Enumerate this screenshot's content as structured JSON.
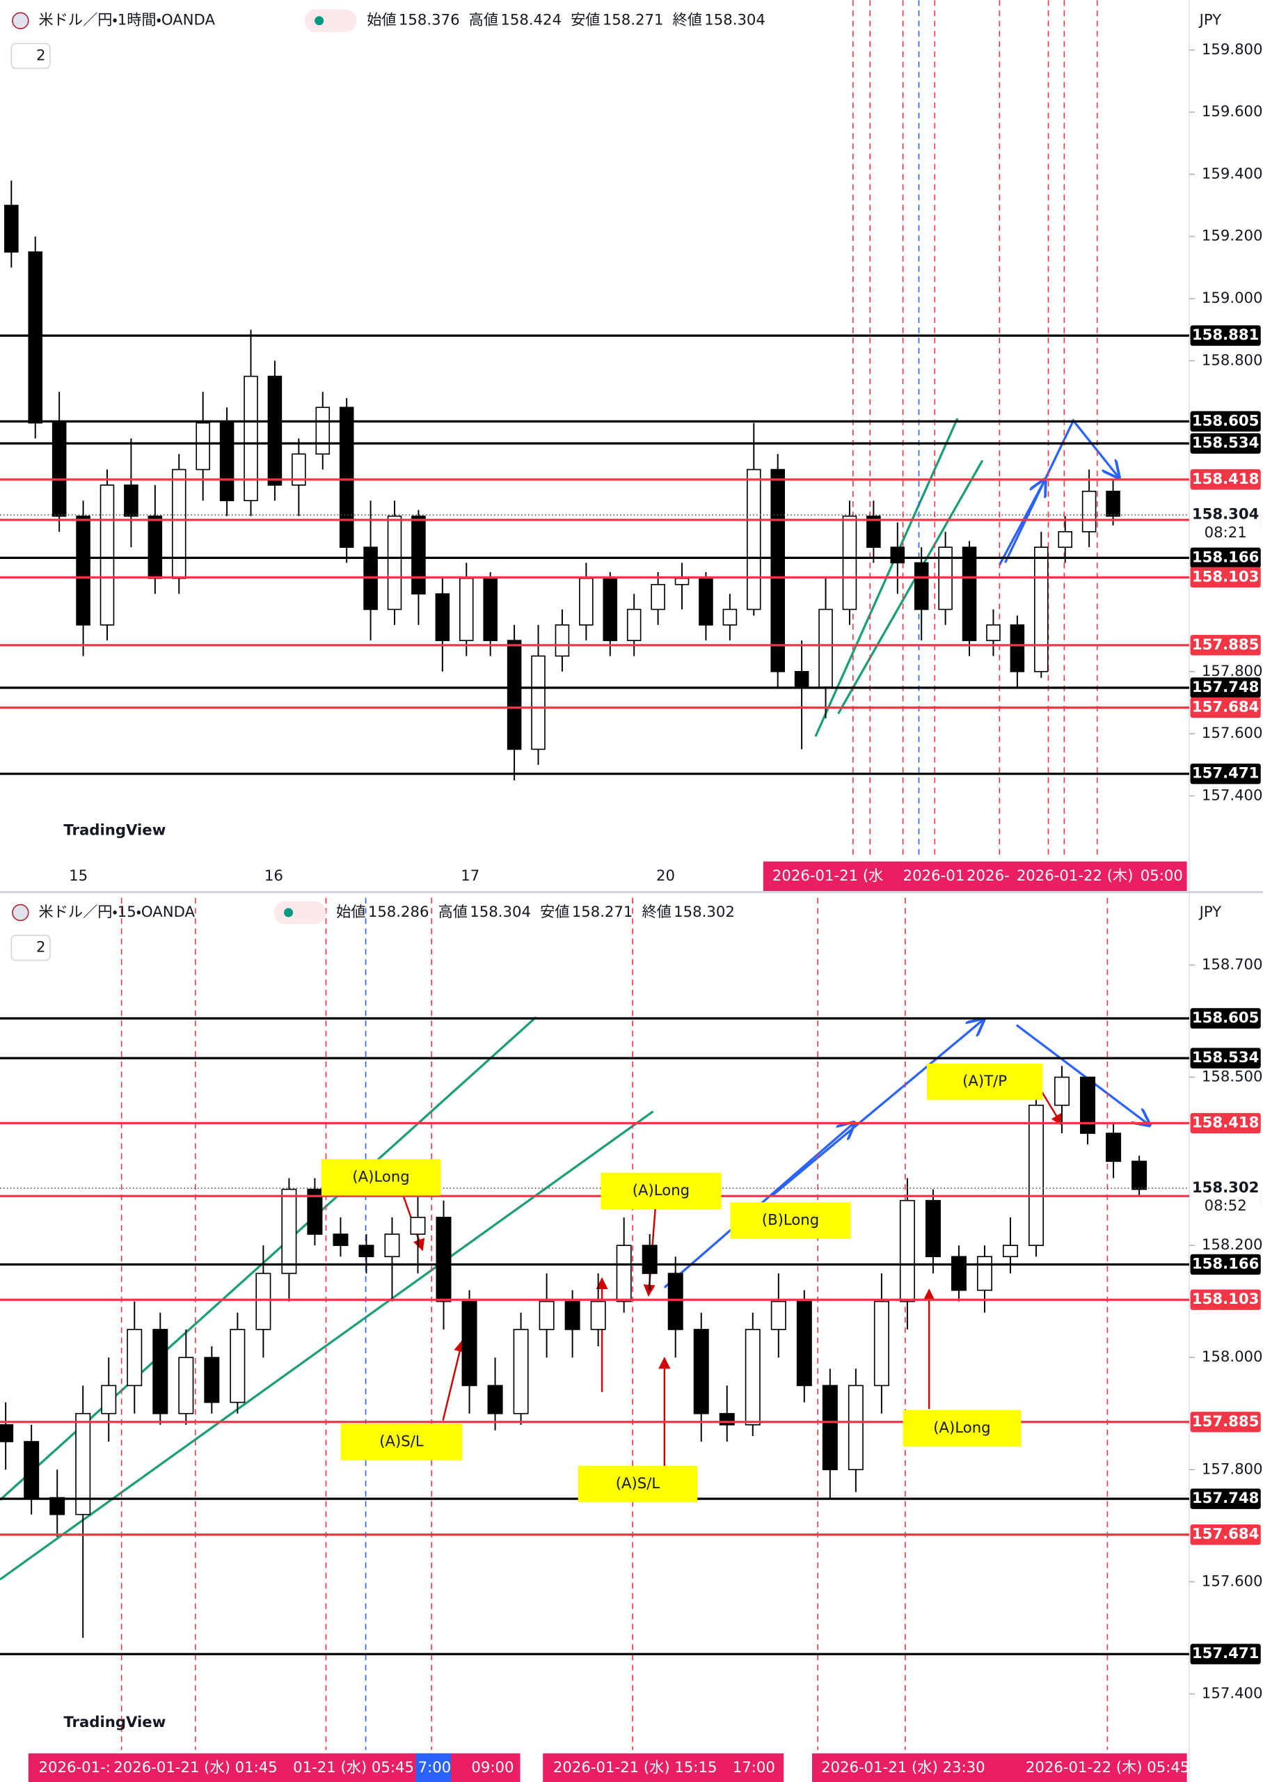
{
  "panels": [
    {
      "header": {
        "symbol": "米ドル／円・1時間・OANDA",
        "open_label": "始値",
        "open": 158.376,
        "high_label": "高値",
        "high": 158.424,
        "low_label": "安値",
        "low": 158.271,
        "close_label": "終値",
        "close": 158.304
      },
      "indicator_count": 2,
      "currency": "JPY",
      "logo": "TradingView",
      "ylim": [
        157.2,
        159.96
      ],
      "yticks": [
        {
          "value": 159.8,
          "label": "159.800"
        },
        {
          "value": 159.6,
          "label": "159.600"
        },
        {
          "value": 159.4,
          "label": "159.400"
        },
        {
          "value": 159.2,
          "label": "159.200"
        },
        {
          "value": 159.0,
          "label": "159.000"
        },
        {
          "value": 158.8,
          "label": "158.800"
        },
        {
          "value": 157.8,
          "label": "157.800"
        },
        {
          "value": 157.6,
          "label": "157.600"
        },
        {
          "value": 157.4,
          "label": "157.400"
        }
      ],
      "levels": [
        {
          "value": 158.881,
          "color": "#000000"
        },
        {
          "value": 158.605,
          "color": "#000000"
        },
        {
          "value": 158.534,
          "color": "#000000"
        },
        {
          "value": 158.418,
          "color": "#f23645"
        },
        {
          "value": 158.288,
          "color": "#f23645"
        },
        {
          "value": 158.166,
          "color": "#000000"
        },
        {
          "value": 158.103,
          "color": "#f23645"
        },
        {
          "value": 157.885,
          "color": "#f23645"
        },
        {
          "value": 157.748,
          "color": "#000000"
        },
        {
          "value": 157.684,
          "color": "#f23645"
        },
        {
          "value": 157.471,
          "color": "#000000"
        }
      ],
      "last_price": {
        "value": 158.304,
        "countdown": "08:21"
      },
      "x_labels": [
        "15",
        "16",
        "17",
        "20"
      ],
      "time_labels": [
        "2026-01-21 (水",
        "2026-01",
        "2026-",
        "2026-01-22 (木)",
        "05:00"
      ],
      "annotations": [],
      "candles": [
        [
          159.3,
          159.38,
          159.1,
          159.15
        ],
        [
          159.15,
          159.2,
          158.55,
          158.6
        ],
        [
          158.6,
          158.7,
          158.25,
          158.3
        ],
        [
          158.3,
          158.35,
          157.85,
          157.95
        ],
        [
          157.95,
          158.45,
          157.9,
          158.4
        ],
        [
          158.4,
          158.55,
          158.2,
          158.3
        ],
        [
          158.3,
          158.4,
          158.05,
          158.1
        ],
        [
          158.1,
          158.5,
          158.05,
          158.45
        ],
        [
          158.45,
          158.7,
          158.35,
          158.6
        ],
        [
          158.6,
          158.65,
          158.3,
          158.35
        ],
        [
          158.35,
          158.9,
          158.3,
          158.75
        ],
        [
          158.75,
          158.8,
          158.35,
          158.4
        ],
        [
          158.4,
          158.55,
          158.3,
          158.5
        ],
        [
          158.5,
          158.7,
          158.45,
          158.65
        ],
        [
          158.65,
          158.68,
          158.15,
          158.2
        ],
        [
          158.2,
          158.35,
          157.9,
          158.0
        ],
        [
          158.0,
          158.35,
          157.95,
          158.3
        ],
        [
          158.3,
          158.32,
          157.95,
          158.05
        ],
        [
          158.05,
          158.1,
          157.8,
          157.9
        ],
        [
          157.9,
          158.15,
          157.85,
          158.1
        ],
        [
          158.1,
          158.12,
          157.85,
          157.9
        ],
        [
          157.9,
          157.95,
          157.45,
          157.55
        ],
        [
          157.55,
          157.95,
          157.5,
          157.85
        ],
        [
          157.85,
          158.0,
          157.8,
          157.95
        ],
        [
          157.95,
          158.15,
          157.9,
          158.1
        ],
        [
          158.1,
          158.12,
          157.85,
          157.9
        ],
        [
          157.9,
          158.05,
          157.85,
          158.0
        ],
        [
          158.0,
          158.12,
          157.95,
          158.08
        ],
        [
          158.08,
          158.15,
          158.0,
          158.1
        ],
        [
          158.1,
          158.12,
          157.9,
          157.95
        ],
        [
          157.95,
          158.05,
          157.9,
          158.0
        ],
        [
          158.0,
          158.6,
          157.98,
          158.45
        ],
        [
          158.45,
          158.5,
          157.75,
          157.8
        ],
        [
          157.8,
          157.9,
          157.55,
          157.75
        ],
        [
          157.75,
          158.1,
          157.65,
          158.0
        ],
        [
          158.0,
          158.35,
          157.95,
          158.3
        ],
        [
          158.3,
          158.35,
          158.15,
          158.2
        ],
        [
          158.2,
          158.28,
          158.05,
          158.15
        ],
        [
          158.15,
          158.2,
          157.9,
          158.0
        ],
        [
          158.0,
          158.25,
          157.95,
          158.2
        ],
        [
          158.2,
          158.22,
          157.85,
          157.9
        ],
        [
          157.9,
          158.0,
          157.85,
          157.95
        ],
        [
          157.95,
          157.98,
          157.75,
          157.8
        ],
        [
          157.8,
          158.25,
          157.78,
          158.2
        ],
        [
          158.2,
          158.3,
          158.15,
          158.25
        ],
        [
          158.25,
          158.45,
          158.2,
          158.38
        ],
        [
          158.38,
          158.42,
          158.27,
          158.3
        ]
      ]
    },
    {
      "header": {
        "symbol": "米ドル／円・15・OANDA",
        "open_label": "始値",
        "open": 158.286,
        "high_label": "高値",
        "high": 158.304,
        "low_label": "安値",
        "low": 158.271,
        "close_label": "終値",
        "close": 158.302
      },
      "indicator_count": 2,
      "currency": "JPY",
      "logo": "TradingView",
      "ylim": [
        157.3,
        158.82
      ],
      "yticks": [
        {
          "value": 158.7,
          "label": "158.700"
        },
        {
          "value": 158.5,
          "label": "158.500"
        },
        {
          "value": 158.2,
          "label": "158.200"
        },
        {
          "value": 158.0,
          "label": "158.000"
        },
        {
          "value": 157.8,
          "label": "157.800"
        },
        {
          "value": 157.6,
          "label": "157.600"
        },
        {
          "value": 157.4,
          "label": "157.400"
        }
      ],
      "levels": [
        {
          "value": 158.605,
          "color": "#000000"
        },
        {
          "value": 158.534,
          "color": "#000000"
        },
        {
          "value": 158.418,
          "color": "#f23645"
        },
        {
          "value": 158.288,
          "color": "#f23645"
        },
        {
          "value": 158.166,
          "color": "#000000"
        },
        {
          "value": 158.103,
          "color": "#f23645"
        },
        {
          "value": 157.885,
          "color": "#f23645"
        },
        {
          "value": 157.748,
          "color": "#000000"
        },
        {
          "value": 157.684,
          "color": "#f23645"
        },
        {
          "value": 157.471,
          "color": "#000000"
        }
      ],
      "last_price": {
        "value": 158.302,
        "countdown": "08:52"
      },
      "x_labels": [],
      "time_labels": [
        "2026-01-:",
        "2026-01-21 (水)  01:45",
        "01-21 (水)  05:45",
        "7:00",
        "09:00",
        "2026-01-21 (水)  15:15",
        "17:00",
        "2026-01-21 (水)  23:30",
        "2026-01-22 (木)  05:45"
      ],
      "annotations": [
        "(A)Long",
        "(A)S/L",
        "(A)Long",
        "(B)Long",
        "(A)S/L",
        "(A)Long",
        "(A)T/P"
      ],
      "candles": [
        [
          157.88,
          157.92,
          157.8,
          157.85
        ],
        [
          157.85,
          157.88,
          157.72,
          157.75
        ],
        [
          157.75,
          157.8,
          157.68,
          157.72
        ],
        [
          157.72,
          157.95,
          157.5,
          157.9
        ],
        [
          157.9,
          158.0,
          157.85,
          157.95
        ],
        [
          157.95,
          158.1,
          157.9,
          158.05
        ],
        [
          158.05,
          158.08,
          157.88,
          157.9
        ],
        [
          157.9,
          158.05,
          157.88,
          158.0
        ],
        [
          158.0,
          158.02,
          157.9,
          157.92
        ],
        [
          157.92,
          158.08,
          157.9,
          158.05
        ],
        [
          158.05,
          158.2,
          158.0,
          158.15
        ],
        [
          158.15,
          158.32,
          158.1,
          158.3
        ],
        [
          158.3,
          158.32,
          158.2,
          158.22
        ],
        [
          158.22,
          158.25,
          158.18,
          158.2
        ],
        [
          158.2,
          158.22,
          158.15,
          158.18
        ],
        [
          158.18,
          158.25,
          158.1,
          158.22
        ],
        [
          158.22,
          158.3,
          158.15,
          158.25
        ],
        [
          158.25,
          158.28,
          158.05,
          158.1
        ],
        [
          158.1,
          158.12,
          157.9,
          157.95
        ],
        [
          157.95,
          158.0,
          157.87,
          157.9
        ],
        [
          157.9,
          158.08,
          157.88,
          158.05
        ],
        [
          158.05,
          158.15,
          158.0,
          158.1
        ],
        [
          158.1,
          158.12,
          158.0,
          158.05
        ],
        [
          158.05,
          158.15,
          158.02,
          158.1
        ],
        [
          158.1,
          158.25,
          158.08,
          158.2
        ],
        [
          158.2,
          158.22,
          158.12,
          158.15
        ],
        [
          158.15,
          158.18,
          158.0,
          158.05
        ],
        [
          158.05,
          158.08,
          157.85,
          157.9
        ],
        [
          157.9,
          157.95,
          157.85,
          157.88
        ],
        [
          157.88,
          158.08,
          157.86,
          158.05
        ],
        [
          158.05,
          158.15,
          158.0,
          158.1
        ],
        [
          158.1,
          158.12,
          157.92,
          157.95
        ],
        [
          157.95,
          157.98,
          157.75,
          157.8
        ],
        [
          157.8,
          157.98,
          157.76,
          157.95
        ],
        [
          157.95,
          158.15,
          157.9,
          158.1
        ],
        [
          158.1,
          158.32,
          158.05,
          158.28
        ],
        [
          158.28,
          158.3,
          158.15,
          158.18
        ],
        [
          158.18,
          158.2,
          158.1,
          158.12
        ],
        [
          158.12,
          158.2,
          158.08,
          158.18
        ],
        [
          158.18,
          158.25,
          158.15,
          158.2
        ],
        [
          158.2,
          158.48,
          158.18,
          158.45
        ],
        [
          158.45,
          158.52,
          158.4,
          158.5
        ],
        [
          158.5,
          158.5,
          158.38,
          158.4
        ],
        [
          158.4,
          158.42,
          158.32,
          158.35
        ],
        [
          158.35,
          158.36,
          158.29,
          158.3
        ]
      ]
    }
  ]
}
